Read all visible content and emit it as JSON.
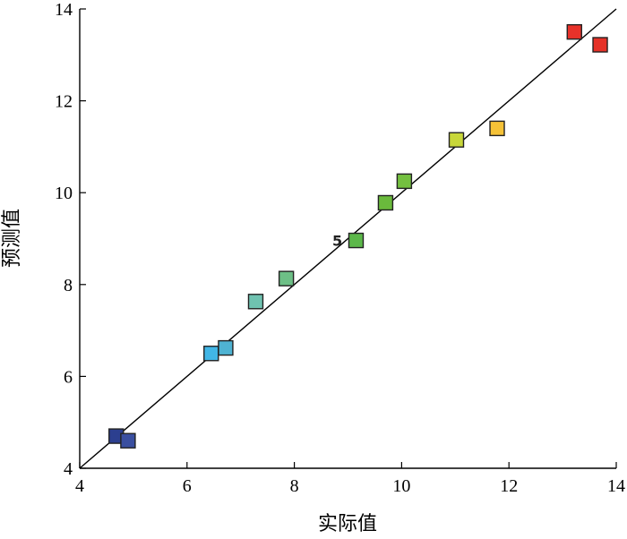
{
  "chart_data": {
    "type": "scatter",
    "xlabel": "实际值",
    "ylabel": "预测值",
    "xlim": [
      4,
      14
    ],
    "ylim": [
      4,
      14
    ],
    "xticks": [
      "4",
      "6",
      "8",
      "10",
      "12",
      "14"
    ],
    "yticks": [
      "4",
      "6",
      "8",
      "10",
      "12",
      "14"
    ],
    "grid": false,
    "reference_line": {
      "from": [
        4,
        4
      ],
      "to": [
        14,
        14
      ]
    },
    "annotations": [
      {
        "text": "5",
        "x": 8.9,
        "y": 8.96
      }
    ],
    "points": [
      {
        "x": 4.68,
        "y": 4.7,
        "color": "#2c3f8f"
      },
      {
        "x": 4.9,
        "y": 4.6,
        "color": "#3a4fa0"
      },
      {
        "x": 6.45,
        "y": 6.5,
        "color": "#41b6e6"
      },
      {
        "x": 6.72,
        "y": 6.62,
        "color": "#4fb3d3"
      },
      {
        "x": 7.28,
        "y": 7.63,
        "color": "#6fc2b0"
      },
      {
        "x": 7.85,
        "y": 8.13,
        "color": "#6dbf86"
      },
      {
        "x": 9.15,
        "y": 8.96,
        "color": "#5cb84a"
      },
      {
        "x": 9.7,
        "y": 9.78,
        "color": "#6aba3c"
      },
      {
        "x": 10.05,
        "y": 10.25,
        "color": "#74c040"
      },
      {
        "x": 11.02,
        "y": 11.15,
        "color": "#c8d73a"
      },
      {
        "x": 11.78,
        "y": 11.4,
        "color": "#f5c237"
      },
      {
        "x": 13.22,
        "y": 13.5,
        "color": "#e8322a"
      },
      {
        "x": 13.7,
        "y": 13.22,
        "color": "#e53127"
      }
    ]
  }
}
